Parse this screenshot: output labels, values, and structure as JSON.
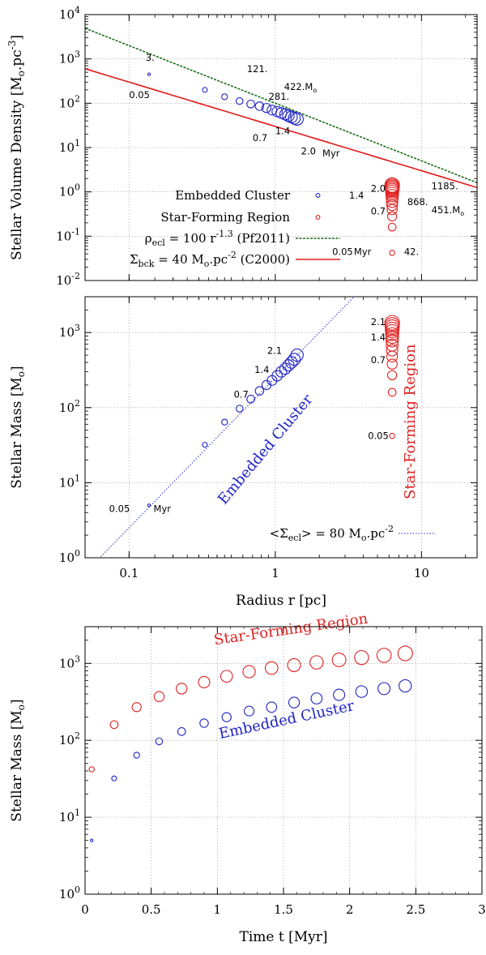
{
  "colors": {
    "embedded": "#1f23c4",
    "sfr": "#e02020",
    "pf2011": "#1c6b1c",
    "c2000": "#e01a1a",
    "sigma_ecl": "#2a2ad6"
  },
  "chart_data": [
    {
      "type": "scatter",
      "panel": "top",
      "ylabel": "Stellar Volume Density [M",
      "ylabel_sub": "o",
      "ylabel_mid": ".pc",
      "ylabel_sup": "-3",
      "ylabel_end": "]",
      "xscale": "log",
      "yscale": "log",
      "xlim": [
        0.05,
        24
      ],
      "ylim": [
        0.01,
        10000
      ],
      "x_ticks": [
        0.1,
        1,
        10
      ],
      "y_ticks": [
        {
          "base": "10",
          "exp": "-2",
          "value": 0.01
        },
        {
          "base": "10",
          "exp": "-1",
          "value": 0.1
        },
        {
          "base": "10",
          "exp": "0",
          "value": 1
        },
        {
          "base": "10",
          "exp": "1",
          "value": 10
        },
        {
          "base": "10",
          "exp": "2",
          "value": 100
        },
        {
          "base": "10",
          "exp": "3",
          "value": 1000
        },
        {
          "base": "10",
          "exp": "4",
          "value": 10000
        }
      ],
      "series": [
        {
          "name": "Embedded Cluster",
          "color_key": "embedded",
          "x": [
            0.137,
            0.33,
            0.45,
            0.57,
            0.68,
            0.78,
            0.87,
            0.95,
            1.03,
            1.1,
            1.17,
            1.23,
            1.29,
            1.35,
            1.41
          ],
          "y": [
            450,
            200,
            140,
            112,
            96,
            86,
            78,
            70,
            65,
            60,
            56,
            52,
            49,
            46,
            44
          ],
          "r": [
            1.6,
            3.0,
            3.6,
            4.2,
            4.8,
            5.2,
            5.6,
            6.0,
            6.3,
            6.6,
            6.8,
            7.0,
            7.2,
            7.4,
            7.6
          ]
        },
        {
          "name": "Star-Forming Region",
          "color_key": "sfr",
          "x": [
            6.3,
            6.3,
            6.3,
            6.3,
            6.3,
            6.3,
            6.3,
            6.3,
            6.3,
            6.3,
            6.3,
            6.3,
            6.3,
            6.3,
            6.3
          ],
          "y": [
            0.042,
            0.16,
            0.28,
            0.4,
            0.5,
            0.6,
            0.72,
            0.82,
            0.92,
            1.02,
            1.1,
            1.18,
            1.26,
            1.34,
            1.42
          ],
          "r": [
            3.2,
            4.8,
            5.6,
            6.2,
            6.6,
            7.0,
            7.3,
            7.6,
            7.8,
            8.0,
            8.2,
            8.4,
            8.6,
            8.8,
            9.0
          ]
        }
      ],
      "lines": [
        {
          "name": "pf2011",
          "color_key": "pf2011",
          "style": "dashed",
          "coef": 100,
          "exp": -1.3
        },
        {
          "name": "c2000",
          "color_key": "c2000",
          "style": "solid",
          "coef": 30.0,
          "exp": -1.0
        }
      ],
      "annotations": [
        {
          "text": "3.",
          "x": 0.13,
          "y": 900
        },
        {
          "text": "0.05",
          "x": 0.1,
          "y": 130
        },
        {
          "text": "121.",
          "x": 0.64,
          "y": 500
        },
        {
          "text": "281.",
          "x": 0.9,
          "y": 120
        },
        {
          "text": "422.M",
          "sub": "o",
          "x": 1.15,
          "y": 200
        },
        {
          "text": "0.7",
          "x": 0.7,
          "y": 14
        },
        {
          "text": "1.4",
          "x": 1.0,
          "y": 20
        },
        {
          "text": "2.0",
          "x": 1.5,
          "y": 7
        },
        {
          "text": "Myr",
          "x": 2.1,
          "y": 6.3
        },
        {
          "text": "1.4",
          "x": 3.2,
          "y": 0.7
        },
        {
          "text": "2.0",
          "x": 4.5,
          "y": 1.0
        },
        {
          "text": "868.",
          "x": 8.0,
          "y": 0.5
        },
        {
          "text": "1185.",
          "x": 11.7,
          "y": 1.15
        },
        {
          "text": "0.7",
          "x": 4.5,
          "y": 0.31
        },
        {
          "text": "451.M",
          "sub": "o",
          "x": 11.7,
          "y": 0.33
        },
        {
          "text": "0.05",
          "x": 2.45,
          "y": 0.038
        },
        {
          "text": "Myr",
          "x": 3.45,
          "y": 0.038
        },
        {
          "text": "42.",
          "x": 7.6,
          "y": 0.038
        }
      ],
      "legend": [
        {
          "label": "Embedded Cluster",
          "kind": "circle",
          "color_key": "embedded"
        },
        {
          "label": "Star-Forming Region",
          "kind": "circle",
          "color_key": "sfr"
        },
        {
          "label_main": "ρ",
          "label_sub": "ecl",
          "label_rest": " = 100 r",
          "label_sup": "-1.3",
          "label_end": " (Pf2011)",
          "kind": "dashed",
          "color_key": "pf2011"
        },
        {
          "label_main": "Σ",
          "label_sub": "bck",
          "label_rest": " = 40 M",
          "label_sub2": "o",
          "label_rest2": ".pc",
          "label_sup": "-2",
          "label_end": " (C2000)",
          "kind": "solid",
          "color_key": "c2000"
        }
      ]
    },
    {
      "type": "scatter",
      "panel": "middle",
      "ylabel": "Stellar Mass [M",
      "ylabel_sub": "o",
      "ylabel_end": "]",
      "xlabel": "Radius r [pc]",
      "xscale": "log",
      "yscale": "log",
      "xlim": [
        0.05,
        24
      ],
      "ylim": [
        1,
        3000
      ],
      "x_ticks": [
        {
          "label": "0.1",
          "value": 0.1
        },
        {
          "label": "1",
          "value": 1
        },
        {
          "label": "10",
          "value": 10
        }
      ],
      "y_ticks": [
        {
          "base": "10",
          "exp": "0",
          "value": 1
        },
        {
          "base": "10",
          "exp": "1",
          "value": 10
        },
        {
          "base": "10",
          "exp": "2",
          "value": 100
        },
        {
          "base": "10",
          "exp": "3",
          "value": 1000
        }
      ],
      "series": [
        {
          "name": "Embedded Cluster",
          "color_key": "embedded",
          "x": [
            0.137,
            0.33,
            0.45,
            0.57,
            0.68,
            0.78,
            0.87,
            0.95,
            1.03,
            1.1,
            1.17,
            1.23,
            1.29,
            1.35,
            1.41
          ],
          "y": [
            5,
            32,
            64,
            97,
            130,
            167,
            200,
            230,
            265,
            300,
            330,
            365,
            400,
            440,
            500
          ],
          "r": [
            1.6,
            3.0,
            3.6,
            4.2,
            4.8,
            5.2,
            5.6,
            6.0,
            6.3,
            6.6,
            6.8,
            7.0,
            7.2,
            7.4,
            7.6
          ]
        },
        {
          "name": "Star-Forming Region",
          "color_key": "sfr",
          "x": [
            6.3,
            6.3,
            6.3,
            6.3,
            6.3,
            6.3,
            6.3,
            6.3,
            6.3,
            6.3,
            6.3,
            6.3,
            6.3,
            6.3,
            6.3
          ],
          "y": [
            42,
            160,
            270,
            380,
            480,
            580,
            680,
            780,
            870,
            950,
            1040,
            1110,
            1190,
            1270,
            1350
          ],
          "r": [
            3.2,
            4.8,
            5.6,
            6.2,
            6.6,
            7.0,
            7.3,
            7.6,
            7.8,
            8.0,
            8.2,
            8.4,
            8.6,
            8.8,
            9.0
          ]
        }
      ],
      "lines": [
        {
          "name": "sigma_ecl",
          "color_key": "sigma_ecl",
          "style": "dotted",
          "coef": 251,
          "exp": 2
        }
      ],
      "annotations": [
        {
          "text": "0.05",
          "x": 0.073,
          "y": 4.1
        },
        {
          "text": "Myr",
          "x": 0.147,
          "y": 4.1
        },
        {
          "text": "0.7",
          "x": 0.52,
          "y": 135
        },
        {
          "text": "1.4",
          "x": 0.72,
          "y": 290
        },
        {
          "text": "2.1",
          "x": 0.88,
          "y": 520
        },
        {
          "text": "2.1",
          "x": 4.5,
          "y": 1250
        },
        {
          "text": "1.4",
          "x": 4.5,
          "y": 780
        },
        {
          "text": "0.7",
          "x": 4.5,
          "y": 390
        },
        {
          "text": "0.05",
          "x": 4.3,
          "y": 38
        }
      ],
      "labels": [
        {
          "text": "Embedded Cluster",
          "color_key": "embedded",
          "x": 0.45,
          "y": 5,
          "angle": -50
        },
        {
          "text": "Star-Forming Region",
          "color_key": "sfr",
          "x": 9.0,
          "y": 6,
          "angle": -90
        }
      ],
      "legend": [
        {
          "label_main": "<Σ",
          "label_sub": "ecl",
          "label_rest": "> = 80 M",
          "label_sub2": "o",
          "label_rest2": ".pc",
          "label_sup": "-2",
          "kind": "dotted",
          "color_key": "sigma_ecl"
        }
      ]
    },
    {
      "type": "scatter",
      "panel": "bottom",
      "ylabel": "Stellar Mass [M",
      "ylabel_sub": "o",
      "ylabel_end": "]",
      "xlabel": "Time t [Myr]",
      "xscale": "linear",
      "yscale": "log",
      "xlim": [
        0,
        3
      ],
      "ylim": [
        1,
        3000
      ],
      "x_ticks": [
        {
          "label": "0",
          "value": 0
        },
        {
          "label": "0.5",
          "value": 0.5
        },
        {
          "label": "1",
          "value": 1
        },
        {
          "label": "1.5",
          "value": 1.5
        },
        {
          "label": "2",
          "value": 2
        },
        {
          "label": "2.5",
          "value": 2.5
        },
        {
          "label": "3",
          "value": 3
        }
      ],
      "y_ticks": [
        {
          "base": "10",
          "exp": "0",
          "value": 1
        },
        {
          "base": "10",
          "exp": "1",
          "value": 10
        },
        {
          "base": "10",
          "exp": "2",
          "value": 100
        },
        {
          "base": "10",
          "exp": "3",
          "value": 1000
        }
      ],
      "series": [
        {
          "name": "Embedded Cluster",
          "color_key": "embedded",
          "x": [
            0.05,
            0.22,
            0.39,
            0.56,
            0.73,
            0.9,
            1.07,
            1.24,
            1.41,
            1.58,
            1.75,
            1.92,
            2.09,
            2.26,
            2.42
          ],
          "y": [
            5,
            32,
            64,
            97,
            130,
            167,
            200,
            240,
            270,
            310,
            350,
            390,
            430,
            470,
            510
          ],
          "r": [
            1.6,
            3.0,
            3.6,
            4.2,
            4.8,
            5.2,
            5.6,
            6.0,
            6.3,
            6.6,
            6.8,
            7.0,
            7.2,
            7.4,
            7.6
          ]
        },
        {
          "name": "Star-Forming Region",
          "color_key": "sfr",
          "x": [
            0.05,
            0.22,
            0.39,
            0.56,
            0.73,
            0.9,
            1.07,
            1.24,
            1.41,
            1.58,
            1.75,
            1.92,
            2.09,
            2.26,
            2.42
          ],
          "y": [
            42,
            160,
            270,
            370,
            470,
            570,
            680,
            780,
            870,
            950,
            1030,
            1110,
            1190,
            1270,
            1350
          ],
          "r": [
            3.2,
            4.8,
            5.6,
            6.2,
            6.6,
            7.0,
            7.3,
            7.6,
            7.8,
            8.0,
            8.2,
            8.4,
            8.6,
            8.8,
            9.0
          ]
        }
      ],
      "labels": [
        {
          "text": "Star-Forming Region",
          "color_key": "sfr",
          "x": 0.98,
          "y": 1750,
          "angle": -8
        },
        {
          "text": "Embedded Cluster",
          "color_key": "embedded",
          "x": 1.02,
          "y": 105,
          "angle": -12
        }
      ]
    }
  ]
}
